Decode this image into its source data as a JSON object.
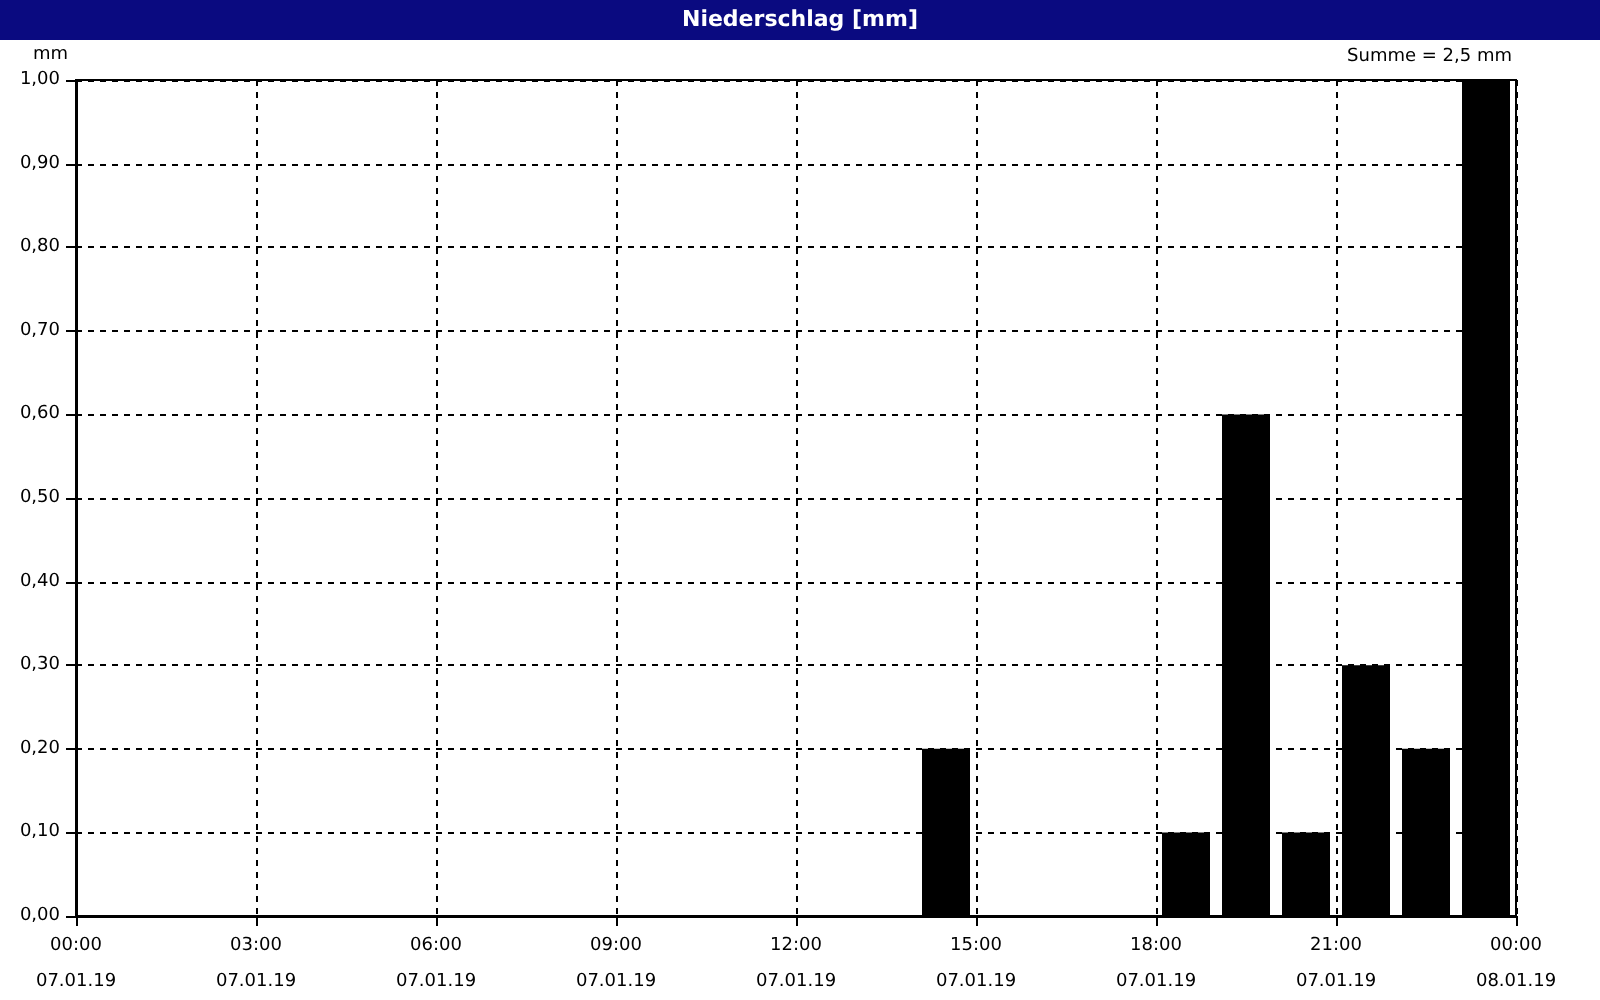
{
  "chart_data": {
    "type": "bar",
    "title": "Niederschlag [mm]",
    "ylabel": "mm",
    "annotations": [
      "Summe = 2,5 mm"
    ],
    "x": [
      "--01-07T14:30",
      "--01-07T18:30",
      "--01-07T19:30",
      "--01-07T20:30",
      "--01-07T21:30",
      "--01-07T22:30",
      "--01-07T23:30"
    ],
    "values": [
      0.2,
      0.1,
      0.6,
      0.1,
      0.3,
      0.2,
      1.0
    ],
    "color": "#000000",
    "xlim": [
      "--01-07T00:00",
      "--01-08T00:00"
    ],
    "xticks": [
      {
        "value": "--01-07T00:00",
        "label": "00:00\n07.01.19"
      },
      {
        "value": "--01-07T03:00",
        "label": "03:00\n07.01.19"
      },
      {
        "value": "--01-07T06:00",
        "label": "06:00\n07.01.19"
      },
      {
        "value": "--01-07T09:00",
        "label": "09:00\n07.01.19"
      },
      {
        "value": "--01-07T12:00",
        "label": "12:00\n07.01.19"
      },
      {
        "value": "--01-07T15:00",
        "label": "15:00\n07.01.19"
      },
      {
        "value": "--01-07T18:00",
        "label": "18:00\n07.01.19"
      },
      {
        "value": "--01-07T21:00",
        "label": "21:00\n07.01.19"
      },
      {
        "value": "--01-08T00:00",
        "label": "00:00\n08.01.19"
      }
    ],
    "ylim": [
      0,
      1
    ],
    "yticks": [
      {
        "value": 0,
        "label": "0,00"
      },
      {
        "value": 0.1,
        "label": "0,10"
      },
      {
        "value": 0.2,
        "label": "0,20"
      },
      {
        "value": 0.3,
        "label": "0,30"
      },
      {
        "value": 0.4,
        "label": "0,40"
      },
      {
        "value": 0.5,
        "label": "0,50"
      },
      {
        "value": 0.6,
        "label": "0,60"
      },
      {
        "value": 0.7,
        "label": "0,70"
      },
      {
        "value": 0.8,
        "label": "0,80"
      },
      {
        "value": 0.9,
        "label": "0,90"
      },
      {
        "value": 1,
        "label": "1,00"
      }
    ],
    "grid": true
  }
}
